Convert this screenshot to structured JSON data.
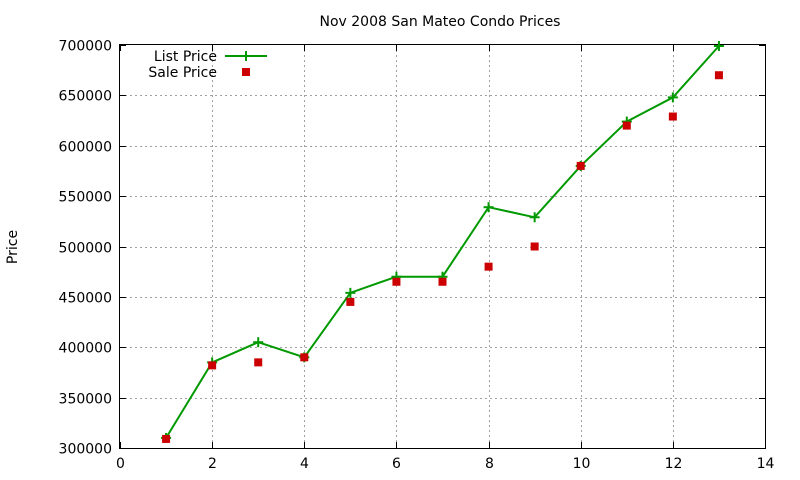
{
  "chart_data": {
    "type": "line",
    "title": "Nov 2008 San Mateo Condo Prices",
    "xlabel": "",
    "ylabel": "Price",
    "xlim": [
      0,
      14
    ],
    "ylim": [
      300000,
      700000
    ],
    "xticks": [
      0,
      2,
      4,
      6,
      8,
      10,
      12,
      14
    ],
    "yticks": [
      300000,
      350000,
      400000,
      450000,
      500000,
      550000,
      600000,
      650000,
      700000
    ],
    "grid": true,
    "legend_position": "top-left",
    "x": [
      1,
      2,
      3,
      4,
      5,
      6,
      7,
      8,
      9,
      10,
      11,
      12,
      13
    ],
    "series": [
      {
        "name": "List Price",
        "style": "line-with-plus-markers",
        "color": "#009900",
        "values": [
          310000,
          385000,
          405000,
          390000,
          454000,
          470000,
          470000,
          539000,
          529000,
          580000,
          624000,
          648000,
          699000
        ]
      },
      {
        "name": "Sale Price",
        "style": "square-markers",
        "color": "#cc0000",
        "values": [
          309000,
          382000,
          385000,
          390000,
          445000,
          465000,
          465000,
          480000,
          500000,
          580000,
          620000,
          629000,
          670000
        ]
      }
    ]
  }
}
